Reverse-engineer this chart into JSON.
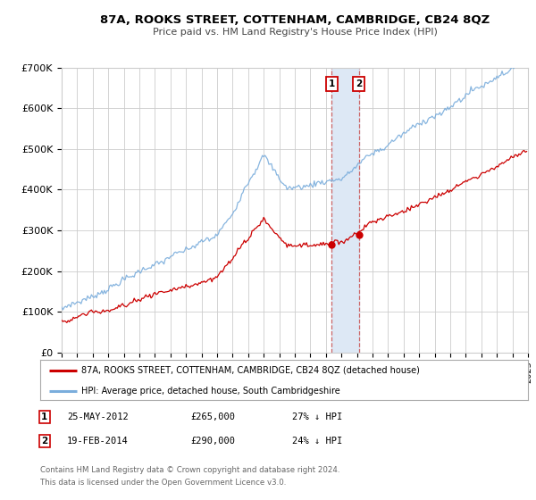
{
  "title": "87A, ROOKS STREET, COTTENHAM, CAMBRIDGE, CB24 8QZ",
  "subtitle": "Price paid vs. HM Land Registry's House Price Index (HPI)",
  "legend_label_red": "87A, ROOKS STREET, COTTENHAM, CAMBRIDGE, CB24 8QZ (detached house)",
  "legend_label_blue": "HPI: Average price, detached house, South Cambridgeshire",
  "transaction1_label": "25-MAY-2012",
  "transaction1_price": "£265,000",
  "transaction1_hpi": "27% ↓ HPI",
  "transaction1_date_x": 2012.38,
  "transaction1_price_val": 265000,
  "transaction2_label": "19-FEB-2014",
  "transaction2_price": "£290,000",
  "transaction2_hpi": "24% ↓ HPI",
  "transaction2_date_x": 2014.12,
  "transaction2_price_val": 290000,
  "xmin": 1995,
  "xmax": 2025,
  "ymin": 0,
  "ymax": 700000,
  "yticks": [
    0,
    100000,
    200000,
    300000,
    400000,
    500000,
    600000,
    700000
  ],
  "ytick_labels": [
    "£0",
    "£100K",
    "£200K",
    "£300K",
    "£400K",
    "£500K",
    "£600K",
    "£700K"
  ],
  "background_color": "#ffffff",
  "grid_color": "#cccccc",
  "red_color": "#cc0000",
  "blue_color": "#7aaddc",
  "highlight_color": "#dde8f5",
  "footnote1": "Contains HM Land Registry data © Crown copyright and database right 2024.",
  "footnote2": "This data is licensed under the Open Government Licence v3.0."
}
